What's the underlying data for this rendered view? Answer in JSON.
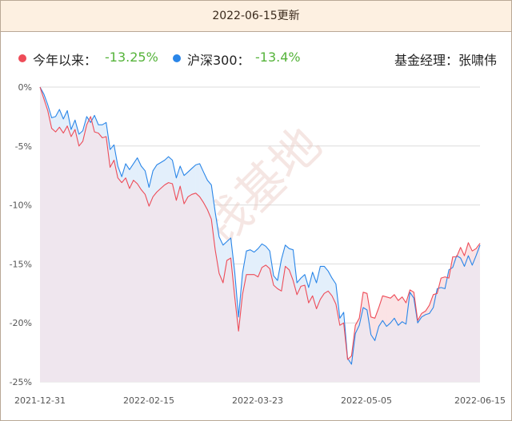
{
  "header": {
    "title": "2022-06-15更新"
  },
  "legend": {
    "items": [
      {
        "name": "今年以来：",
        "value": "-13.25%",
        "color": "#ee4c58"
      },
      {
        "name": "沪深300：",
        "value": "-13.4%",
        "color": "#2a86e8"
      }
    ],
    "manager": "基金经理：张啸伟"
  },
  "watermark": "搞钱基地",
  "chart_data": {
    "type": "line",
    "x_ticks": [
      "2021-12-31",
      "2022-02-15",
      "2022-03-23",
      "2022-05-05",
      "2022-06-15"
    ],
    "y_ticks": [
      "0%",
      "-5%",
      "-10%",
      "-15%",
      "-20%",
      "-25%"
    ],
    "ylim": [
      -25,
      0
    ],
    "grid": true,
    "legend_position": "top",
    "series": [
      {
        "name": "今年以来：",
        "color": "#ee4c58",
        "values": [
          0,
          -1,
          -2,
          -3.5,
          -3.8,
          -3.4,
          -3.9,
          -3.3,
          -4.2,
          -3.6,
          -5,
          -4.6,
          -3.2,
          -2.5,
          -3.8,
          -3.9,
          -4.3,
          -4.2,
          -6.8,
          -6.2,
          -7.7,
          -8.1,
          -7.7,
          -8.6,
          -7.9,
          -8.2,
          -8.7,
          -9.1,
          -10.1,
          -9.3,
          -8.9,
          -8.6,
          -8.3,
          -8.1,
          -8.2,
          -9.6,
          -8.4,
          -9.9,
          -9.3,
          -9.1,
          -9,
          -9.3,
          -9.8,
          -10.4,
          -11.2,
          -13.8,
          -15.8,
          -16.6,
          -14.7,
          -14.5,
          -17.8,
          -20.7,
          -17.6,
          -15.9,
          -15.9,
          -15.9,
          -16.1,
          -15.3,
          -15.1,
          -15.4,
          -16.8,
          -17.1,
          -17.3,
          -15.2,
          -15.5,
          -16.4,
          -17.6,
          -16.9,
          -16.8,
          -18.3,
          -17.7,
          -18.8,
          -18,
          -17.5,
          -17.3,
          -17.7,
          -18.4,
          -20.2,
          -20,
          -23.1,
          -22.8,
          -20.2,
          -19.6,
          -17.4,
          -17.5,
          -19.5,
          -19.6,
          -18.7,
          -17.7,
          -17.8,
          -17.9,
          -17.6,
          -18.1,
          -17.8,
          -18.3,
          -17.2,
          -17.4,
          -19.8,
          -19.2,
          -19,
          -18.5,
          -17.6,
          -17.5,
          -16.2,
          -16.1,
          -16.2,
          -14.4,
          -14.4,
          -13.6,
          -14.3,
          -13.2,
          -13.9,
          -13.7,
          -13.25
        ]
      },
      {
        "name": "沪深300：",
        "color": "#2a86e8",
        "values": [
          0,
          -0.6,
          -1.5,
          -2.6,
          -2.5,
          -1.9,
          -2.7,
          -2,
          -3.6,
          -2.8,
          -4,
          -3.7,
          -2.5,
          -3,
          -2.4,
          -3.2,
          -3.2,
          -3,
          -5.3,
          -4.9,
          -6.7,
          -7.6,
          -6.5,
          -7,
          -6.5,
          -6,
          -6.7,
          -7.1,
          -8.5,
          -7.1,
          -6.6,
          -6.4,
          -6.2,
          -5.9,
          -6.2,
          -7.7,
          -6.7,
          -7.5,
          -7.2,
          -6.9,
          -6.6,
          -6.5,
          -7.2,
          -7.9,
          -8.3,
          -10.6,
          -12.7,
          -13.4,
          -13.1,
          -12.8,
          -15.7,
          -19.5,
          -15.8,
          -13.9,
          -13.8,
          -14,
          -13.7,
          -13.3,
          -13.5,
          -13.9,
          -16,
          -16.4,
          -14.6,
          -13.4,
          -13.7,
          -13.8,
          -16.6,
          -16.2,
          -15.9,
          -17,
          -15.7,
          -16.6,
          -15.2,
          -15.2,
          -15.6,
          -16.2,
          -16.7,
          -19.6,
          -19.1,
          -23,
          -23.5,
          -20.9,
          -20.2,
          -18.7,
          -18.9,
          -21,
          -21.5,
          -20.3,
          -19.8,
          -20.3,
          -20,
          -19.6,
          -20.2,
          -19.9,
          -20.1,
          -17.4,
          -17.9,
          -20,
          -19.5,
          -19.3,
          -19.2,
          -18.7,
          -17.1,
          -17,
          -17.1,
          -15.5,
          -15.3,
          -14.3,
          -14.5,
          -15.2,
          -14.3,
          -15.1,
          -14.3,
          -13.4
        ]
      }
    ]
  }
}
